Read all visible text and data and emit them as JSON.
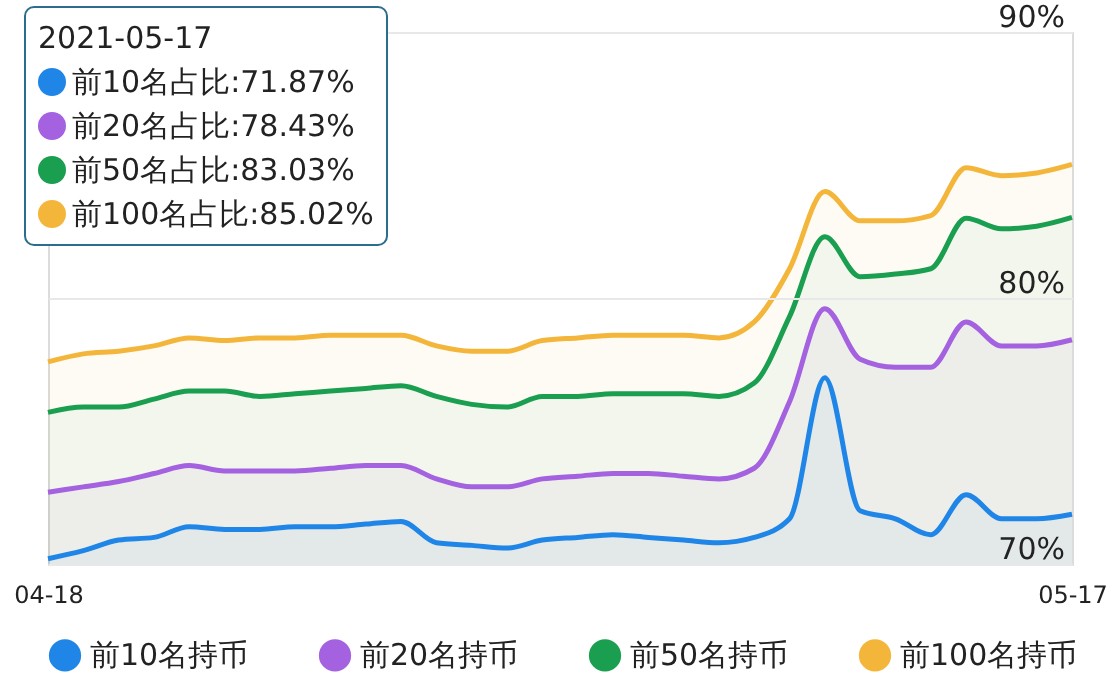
{
  "chart_data": {
    "type": "area",
    "x": [
      "2021-04-18",
      "2021-04-19",
      "2021-04-20",
      "2021-04-21",
      "2021-04-22",
      "2021-04-23",
      "2021-04-24",
      "2021-04-25",
      "2021-04-26",
      "2021-04-27",
      "2021-04-28",
      "2021-04-29",
      "2021-04-30",
      "2021-05-01",
      "2021-05-02",
      "2021-05-03",
      "2021-05-04",
      "2021-05-05",
      "2021-05-06",
      "2021-05-07",
      "2021-05-08",
      "2021-05-09",
      "2021-05-10",
      "2021-05-11",
      "2021-05-12",
      "2021-05-13",
      "2021-05-14",
      "2021-05-15",
      "2021-05-16",
      "2021-05-17"
    ],
    "series": [
      {
        "name": "前10名持币",
        "color": "#1f86e8",
        "values": [
          70.2,
          70.5,
          70.9,
          71.0,
          71.4,
          71.3,
          71.3,
          71.4,
          71.4,
          71.5,
          71.6,
          70.8,
          70.7,
          70.6,
          70.9,
          71.0,
          71.1,
          71.0,
          70.9,
          70.8,
          71.0,
          71.7,
          77.0,
          72.0,
          71.7,
          71.1,
          72.6,
          71.7,
          71.7,
          71.87
        ]
      },
      {
        "name": "前20名持币",
        "color": "#a461e0",
        "values": [
          72.7,
          72.9,
          73.1,
          73.4,
          73.7,
          73.5,
          73.5,
          73.5,
          73.6,
          73.7,
          73.7,
          73.2,
          72.9,
          72.9,
          73.2,
          73.3,
          73.4,
          73.4,
          73.3,
          73.2,
          73.6,
          76.1,
          79.6,
          77.7,
          77.4,
          77.4,
          79.1,
          78.2,
          78.2,
          78.43
        ]
      },
      {
        "name": "前50名持币",
        "color": "#1a9e4f",
        "values": [
          75.7,
          75.9,
          75.9,
          76.2,
          76.5,
          76.5,
          76.3,
          76.4,
          76.5,
          76.6,
          76.7,
          76.3,
          76.0,
          75.9,
          76.3,
          76.3,
          76.4,
          76.4,
          76.4,
          76.3,
          76.8,
          79.3,
          82.3,
          80.8,
          80.9,
          81.1,
          83.0,
          82.6,
          82.7,
          83.03
        ]
      },
      {
        "name": "前100名持币",
        "color": "#f4b63a",
        "values": [
          77.6,
          77.9,
          78.0,
          78.2,
          78.5,
          78.4,
          78.5,
          78.5,
          78.6,
          78.6,
          78.6,
          78.2,
          78.0,
          78.0,
          78.4,
          78.5,
          78.6,
          78.6,
          78.6,
          78.5,
          79.1,
          81.1,
          84.0,
          82.9,
          82.9,
          83.1,
          84.9,
          84.6,
          84.7,
          85.02
        ]
      }
    ],
    "xlim": [
      "2021-04-18",
      "2021-05-17"
    ],
    "xticks": [
      {
        "value": "2021-04-18",
        "label": "04-18"
      },
      {
        "value": "2021-05-17",
        "label": "05-17"
      }
    ],
    "ylim": [
      70,
      90
    ],
    "yticks": [
      {
        "value": 70,
        "label": "70%"
      },
      {
        "value": 80,
        "label": "80%"
      },
      {
        "value": 90,
        "label": "90%"
      }
    ],
    "grid": "y",
    "legend": "bottom",
    "annotations": [
      "2021-05-17",
      "前10名占比:71.87%",
      "前20名占比:78.43%",
      "前50名占比:83.03%",
      "前100名占比:85.02%"
    ]
  }
}
